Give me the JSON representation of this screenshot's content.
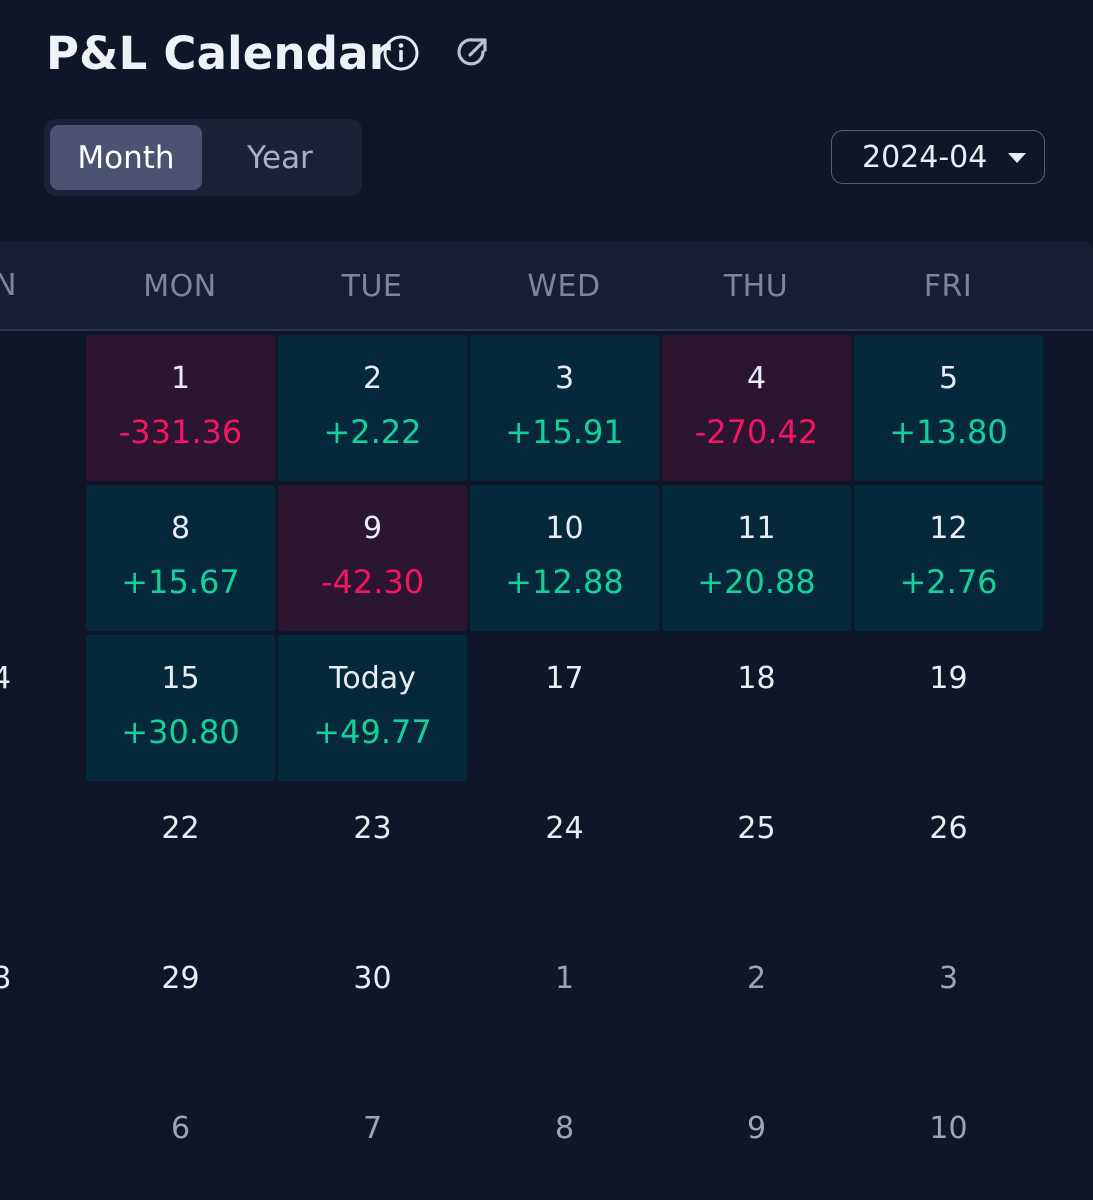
{
  "header": {
    "title": "P&L Calendar",
    "info_icon": "info-icon",
    "share_icon": "share-icon"
  },
  "view_toggle": {
    "options": [
      "Month",
      "Year"
    ],
    "selected": "Month"
  },
  "date_picker": {
    "value": "2024-04",
    "icon": "caret-down-icon"
  },
  "calendar": {
    "partial_left_header": "N",
    "weekdays": [
      "MON",
      "TUE",
      "WED",
      "THU",
      "FRI"
    ],
    "partial_left_days": [
      "",
      "",
      "4",
      "",
      "8",
      ""
    ],
    "weeks": [
      [
        {
          "day": "1",
          "pnl": "-331.36",
          "status": "loss"
        },
        {
          "day": "2",
          "pnl": "+2.22",
          "status": "profit"
        },
        {
          "day": "3",
          "pnl": "+15.91",
          "status": "profit"
        },
        {
          "day": "4",
          "pnl": "-270.42",
          "status": "loss"
        },
        {
          "day": "5",
          "pnl": "+13.80",
          "status": "profit"
        }
      ],
      [
        {
          "day": "8",
          "pnl": "+15.67",
          "status": "profit"
        },
        {
          "day": "9",
          "pnl": "-42.30",
          "status": "loss"
        },
        {
          "day": "10",
          "pnl": "+12.88",
          "status": "profit"
        },
        {
          "day": "11",
          "pnl": "+20.88",
          "status": "profit"
        },
        {
          "day": "12",
          "pnl": "+2.76",
          "status": "profit"
        }
      ],
      [
        {
          "day": "15",
          "pnl": "+30.80",
          "status": "profit"
        },
        {
          "day": "Today",
          "pnl": "+49.77",
          "status": "profit"
        },
        {
          "day": "17",
          "pnl": "",
          "status": "none"
        },
        {
          "day": "18",
          "pnl": "",
          "status": "none"
        },
        {
          "day": "19",
          "pnl": "",
          "status": "none"
        }
      ],
      [
        {
          "day": "22",
          "pnl": "",
          "status": "none"
        },
        {
          "day": "23",
          "pnl": "",
          "status": "none"
        },
        {
          "day": "24",
          "pnl": "",
          "status": "none"
        },
        {
          "day": "25",
          "pnl": "",
          "status": "none"
        },
        {
          "day": "26",
          "pnl": "",
          "status": "none"
        }
      ],
      [
        {
          "day": "29",
          "pnl": "",
          "status": "none"
        },
        {
          "day": "30",
          "pnl": "",
          "status": "none"
        },
        {
          "day": "1",
          "pnl": "",
          "status": "other"
        },
        {
          "day": "2",
          "pnl": "",
          "status": "other"
        },
        {
          "day": "3",
          "pnl": "",
          "status": "other"
        }
      ],
      [
        {
          "day": "6",
          "pnl": "",
          "status": "other"
        },
        {
          "day": "7",
          "pnl": "",
          "status": "other"
        },
        {
          "day": "8",
          "pnl": "",
          "status": "other"
        },
        {
          "day": "9",
          "pnl": "",
          "status": "other"
        },
        {
          "day": "10",
          "pnl": "",
          "status": "other"
        }
      ]
    ]
  },
  "colors": {
    "background": "#0f1629",
    "profit_text": "#14d19a",
    "loss_text": "#f21661",
    "profit_cell": "#05283a",
    "loss_cell": "#2b1530"
  }
}
